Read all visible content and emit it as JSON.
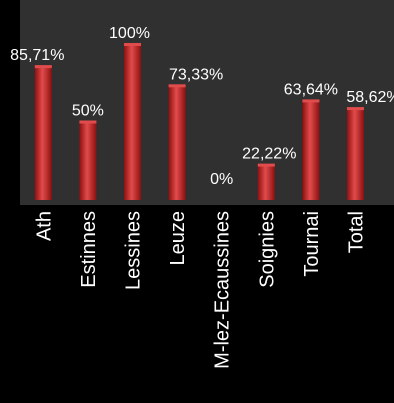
{
  "chart_data": {
    "type": "bar",
    "categories": [
      "Ath",
      "Estinnes",
      "Lessines",
      "Leuze",
      "M-lez-Ecaussines",
      "Soignies",
      "Tournai",
      "Total"
    ],
    "values": [
      85.71,
      50,
      100,
      73.33,
      0,
      22.22,
      63.64,
      58.62
    ],
    "data_labels": [
      "85,71%",
      "50%",
      "100%",
      "73,33%",
      "0%",
      "22,22%",
      "63,64%",
      "58,62%"
    ],
    "ylim": [
      0,
      100
    ],
    "grid": false,
    "legend": "none",
    "colors": {
      "background": "#000000",
      "plot_area": "#303030",
      "bar_light": "#e24b4b",
      "bar_dark": "#8c1010",
      "text": "#ffffff"
    }
  }
}
